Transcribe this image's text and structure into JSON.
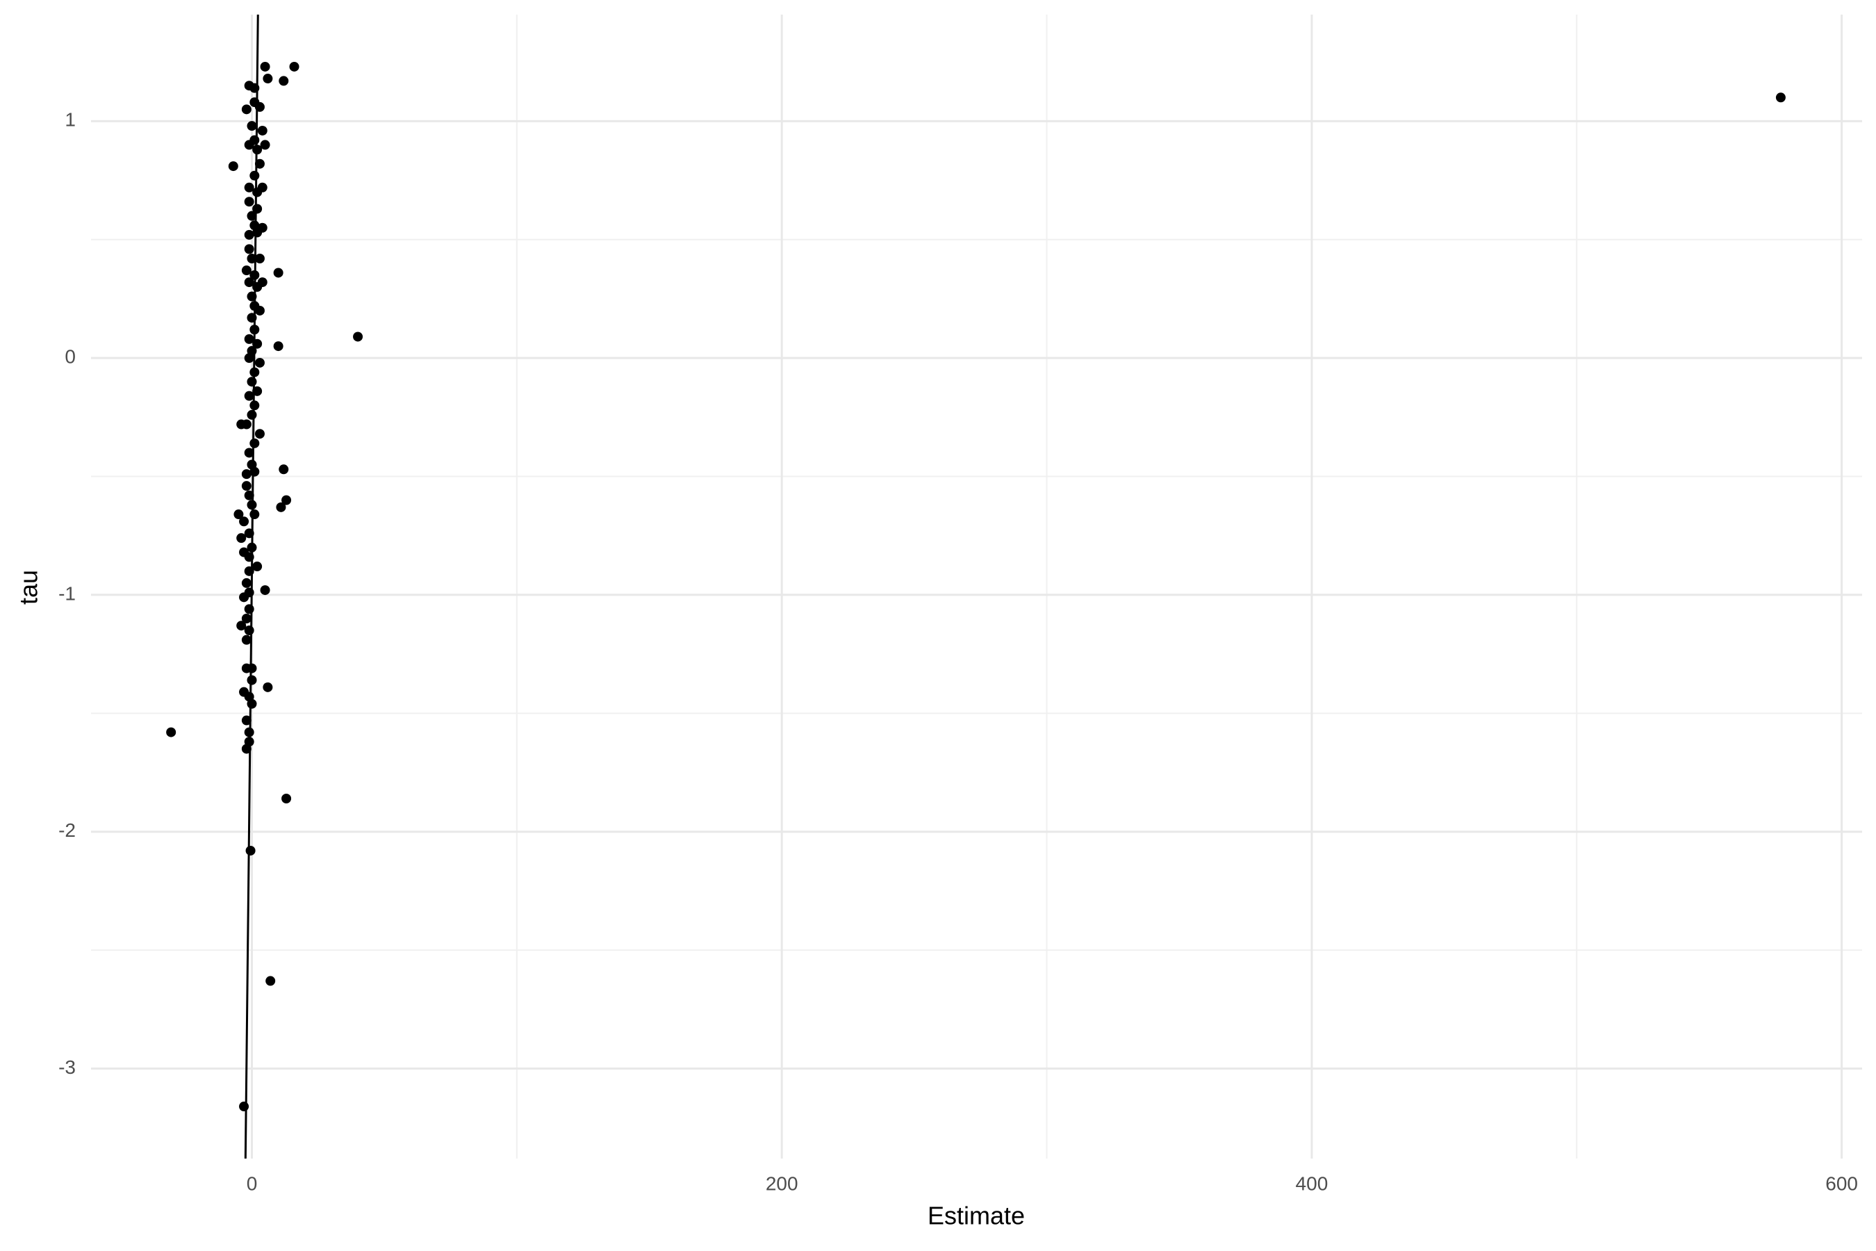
{
  "chart_data": {
    "type": "scatter",
    "x_label": "Estimate",
    "y_label": "tau",
    "xlim": [
      -60.7,
      607.7
    ],
    "ylim": [
      -3.38,
      1.45
    ],
    "xticks": [
      0,
      200,
      400,
      600
    ],
    "yticks": [
      -3,
      -2,
      -1,
      0,
      1
    ],
    "grid": true,
    "points": {
      "color": "#000000",
      "x": [
        577,
        40,
        -30.5,
        13,
        7,
        -3,
        -0.5,
        16,
        5,
        12,
        6,
        -7,
        10,
        10,
        12,
        13,
        11,
        5,
        6,
        -1,
        1,
        3,
        -2,
        1,
        0,
        4,
        -1,
        5,
        2,
        1,
        3,
        1,
        -1,
        4,
        2,
        -1,
        2,
        0,
        1,
        4,
        -1,
        2,
        -1,
        0,
        3,
        -2,
        1,
        4,
        -1,
        2,
        0,
        1,
        3,
        0,
        1,
        -1,
        2,
        0,
        -1,
        3,
        1,
        0,
        2,
        -1,
        1,
        0,
        -2,
        -4,
        3,
        1,
        -1,
        0,
        -2,
        1,
        -2,
        -1,
        0,
        -5,
        1,
        -3,
        -1,
        -4,
        0,
        -3,
        -1,
        2,
        -1,
        -2,
        -1,
        -3,
        -1,
        -2,
        -4,
        -1,
        -2,
        -2,
        0,
        0,
        -3,
        -1,
        0,
        -2,
        -1,
        -1,
        -2
      ],
      "y": [
        1.1,
        0.09,
        -1.58,
        -1.86,
        -2.63,
        -3.16,
        -2.08,
        1.23,
        1.23,
        1.17,
        1.18,
        0.81,
        0.36,
        0.05,
        -0.47,
        -0.6,
        -0.63,
        -0.98,
        -1.39,
        1.15,
        1.14,
        1.06,
        1.05,
        1.08,
        0.98,
        0.96,
        0.9,
        0.9,
        0.88,
        0.92,
        0.82,
        0.77,
        0.72,
        0.72,
        0.7,
        0.66,
        0.63,
        0.6,
        0.56,
        0.55,
        0.52,
        0.53,
        0.46,
        0.42,
        0.42,
        0.37,
        0.35,
        0.32,
        0.32,
        0.3,
        0.26,
        0.22,
        0.2,
        0.17,
        0.12,
        0.08,
        0.06,
        0.03,
        0.0,
        -0.02,
        -0.06,
        -0.1,
        -0.14,
        -0.16,
        -0.2,
        -0.24,
        -0.28,
        -0.28,
        -0.32,
        -0.36,
        -0.4,
        -0.45,
        -0.49,
        -0.48,
        -0.54,
        -0.58,
        -0.62,
        -0.66,
        -0.66,
        -0.69,
        -0.74,
        -0.76,
        -0.8,
        -0.82,
        -0.84,
        -0.88,
        -0.9,
        -0.95,
        -0.99,
        -1.01,
        -1.06,
        -1.1,
        -1.13,
        -1.15,
        -1.19,
        -1.31,
        -1.31,
        -1.36,
        -1.41,
        -1.43,
        -1.46,
        -1.53,
        -1.58,
        -1.62,
        -1.65
      ]
    },
    "line": {
      "color": "#000000",
      "x": [
        -2.4,
        2.3
      ],
      "y": [
        -3.38,
        1.45
      ]
    }
  }
}
